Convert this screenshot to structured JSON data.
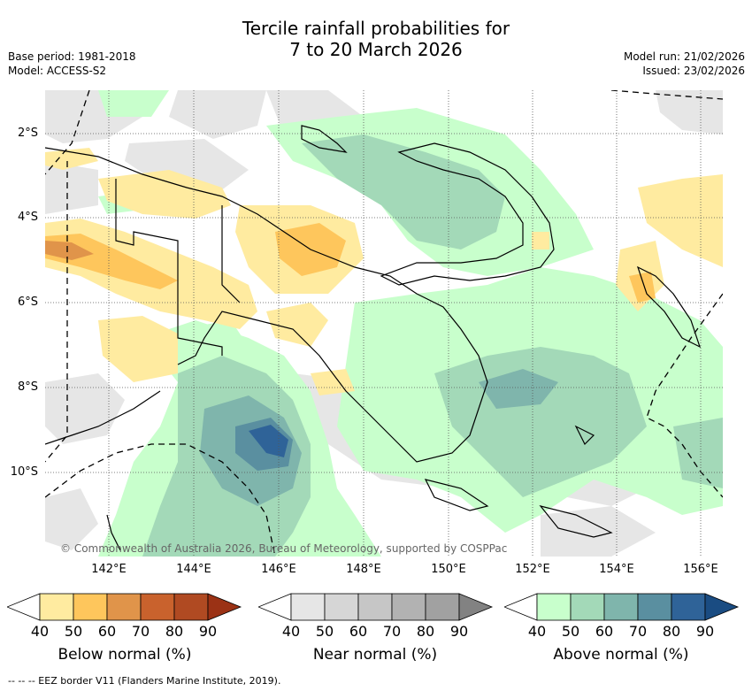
{
  "title": {
    "line1": "Tercile rainfall probabilities for",
    "line2": "7 to 20 March 2026"
  },
  "meta_left": {
    "base_period": "Base period: 1981-2018",
    "model": "Model: ACCESS-S2"
  },
  "meta_right": {
    "model_run": "Model run: 21/02/2026",
    "issued": "Issued: 23/02/2026"
  },
  "map": {
    "lat_labels": [
      "2°S",
      "4°S",
      "6°S",
      "8°S",
      "10°S"
    ],
    "lon_labels": [
      "142°E",
      "144°E",
      "146°E",
      "148°E",
      "150°E",
      "152°E",
      "154°E",
      "156°E"
    ],
    "copyright": "© Commonwealth of Australia 2026, Bureau of Meteorology, supported by COSPPac",
    "land_outline_color": "#000000",
    "grid": true
  },
  "legend": {
    "below": {
      "label": "Below normal (%)",
      "ticks": [
        "40",
        "50",
        "60",
        "70",
        "80",
        "90"
      ],
      "colors": [
        "#ffffff",
        "#ffeba0",
        "#fec65c",
        "#e0944a",
        "#c9622d",
        "#b04a22",
        "#9b3215"
      ]
    },
    "near": {
      "label": "Near normal (%)",
      "ticks": [
        "40",
        "50",
        "60",
        "70",
        "80",
        "90"
      ],
      "colors": [
        "#ffffff",
        "#e6e6e6",
        "#d6d6d6",
        "#c6c6c6",
        "#b2b2b2",
        "#a1a1a1",
        "#828282"
      ]
    },
    "above": {
      "label": "Above normal (%)",
      "ticks": [
        "40",
        "50",
        "60",
        "70",
        "80",
        "90"
      ],
      "colors": [
        "#ffffff",
        "#c8ffcc",
        "#a3d9b8",
        "#7fb5ac",
        "#5a8fa0",
        "#2f6398",
        "#1a4c82"
      ]
    }
  },
  "footer": "--  --  -- EEZ border V11 (Flanders Marine Institute, 2019)."
}
